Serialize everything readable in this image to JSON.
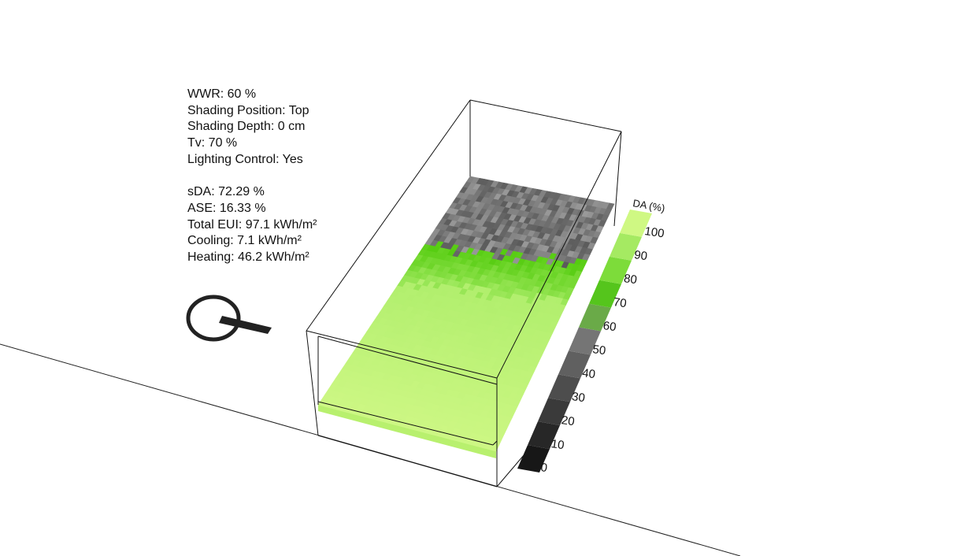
{
  "params": [
    "WWR: 60 %",
    "Shading Position: Top",
    "Shading Depth: 0 cm",
    "Tv: 70 %",
    "Lighting Control: Yes"
  ],
  "results": [
    "sDA: 72.29 %",
    "ASE: 16.33 %",
    "Total EUI: 97.1 kWh/m²",
    "Cooling: 7.1 kWh/m²",
    "Heating: 46.2 kWh/m²"
  ],
  "legend": {
    "title": "DA (%)",
    "ticks": [
      "0",
      "10",
      "20",
      "30",
      "40",
      "50",
      "60",
      "70",
      "80",
      "90",
      "100"
    ],
    "colors": [
      "#171717",
      "#272727",
      "#3a3a3a",
      "#4d4d4d",
      "#606060",
      "#757575",
      "#6aaa48",
      "#55c51c",
      "#7ddc3a",
      "#a5ea62",
      "#cff883"
    ]
  },
  "colors": {
    "floor_light": "#cdf784",
    "floor_mid": "#a8ec66",
    "floor_edge": "#b8f06e",
    "green_band": "#55cc10",
    "gray_dark": "#5a5a5a",
    "gray_light": "#9a9a9a"
  },
  "icons": {
    "north": "north-arrow-icon"
  }
}
